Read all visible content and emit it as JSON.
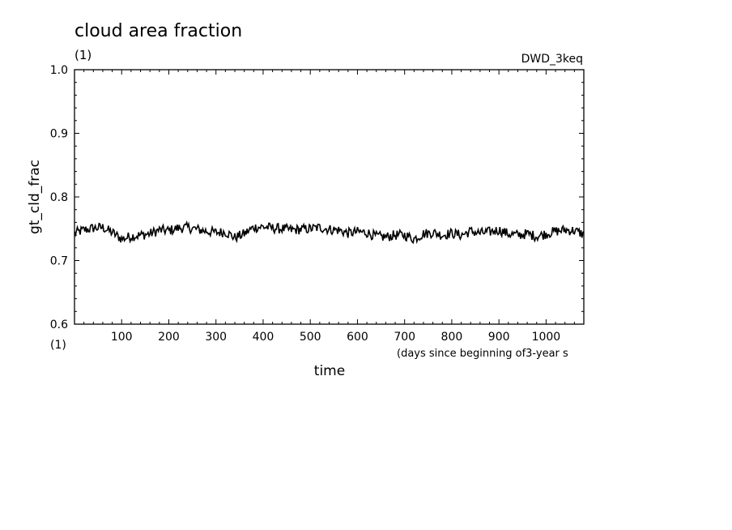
{
  "chart_data": {
    "type": "line",
    "title": "cloud area fraction",
    "y_units": "(1)",
    "x_axis_units_corner": "(1)",
    "run_label": "DWD_3keq",
    "ylabel": "gt_cld_frac",
    "xlabel": "time",
    "x_units_note": "(days since beginning of3-year s",
    "xlim": [
      0,
      1080
    ],
    "ylim": [
      0.6,
      1.0
    ],
    "xticks": [
      100,
      200,
      300,
      400,
      500,
      600,
      700,
      800,
      900,
      1000
    ],
    "xtick_labels": [
      "100",
      "200",
      "300",
      "400",
      "500",
      "600",
      "700",
      "800",
      "900",
      "1000"
    ],
    "yticks": [
      0.6,
      0.7,
      0.8,
      0.9,
      1.0
    ],
    "ytick_labels": [
      "0.6",
      "0.7",
      "0.8",
      "0.9",
      "1.0"
    ],
    "grid": false,
    "series": [
      {
        "color": "#000000",
        "x": [
          0,
          20,
          40,
          60,
          80,
          100,
          120,
          140,
          160,
          180,
          200,
          220,
          240,
          260,
          280,
          300,
          320,
          340,
          360,
          380,
          400,
          420,
          440,
          460,
          480,
          500,
          520,
          540,
          560,
          580,
          600,
          620,
          640,
          660,
          680,
          700,
          720,
          740,
          760,
          780,
          800,
          820,
          840,
          860,
          880,
          900,
          920,
          940,
          960,
          980,
          1000,
          1020,
          1040,
          1060,
          1080
        ],
        "y": [
          0.743,
          0.748,
          0.751,
          0.752,
          0.744,
          0.734,
          0.738,
          0.74,
          0.742,
          0.748,
          0.747,
          0.751,
          0.752,
          0.749,
          0.746,
          0.744,
          0.745,
          0.736,
          0.742,
          0.752,
          0.753,
          0.751,
          0.75,
          0.748,
          0.749,
          0.75,
          0.752,
          0.749,
          0.748,
          0.743,
          0.745,
          0.744,
          0.738,
          0.737,
          0.74,
          0.74,
          0.734,
          0.742,
          0.744,
          0.74,
          0.743,
          0.74,
          0.746,
          0.743,
          0.745,
          0.748,
          0.742,
          0.74,
          0.742,
          0.738,
          0.742,
          0.746,
          0.748,
          0.747,
          0.741
        ]
      }
    ]
  }
}
